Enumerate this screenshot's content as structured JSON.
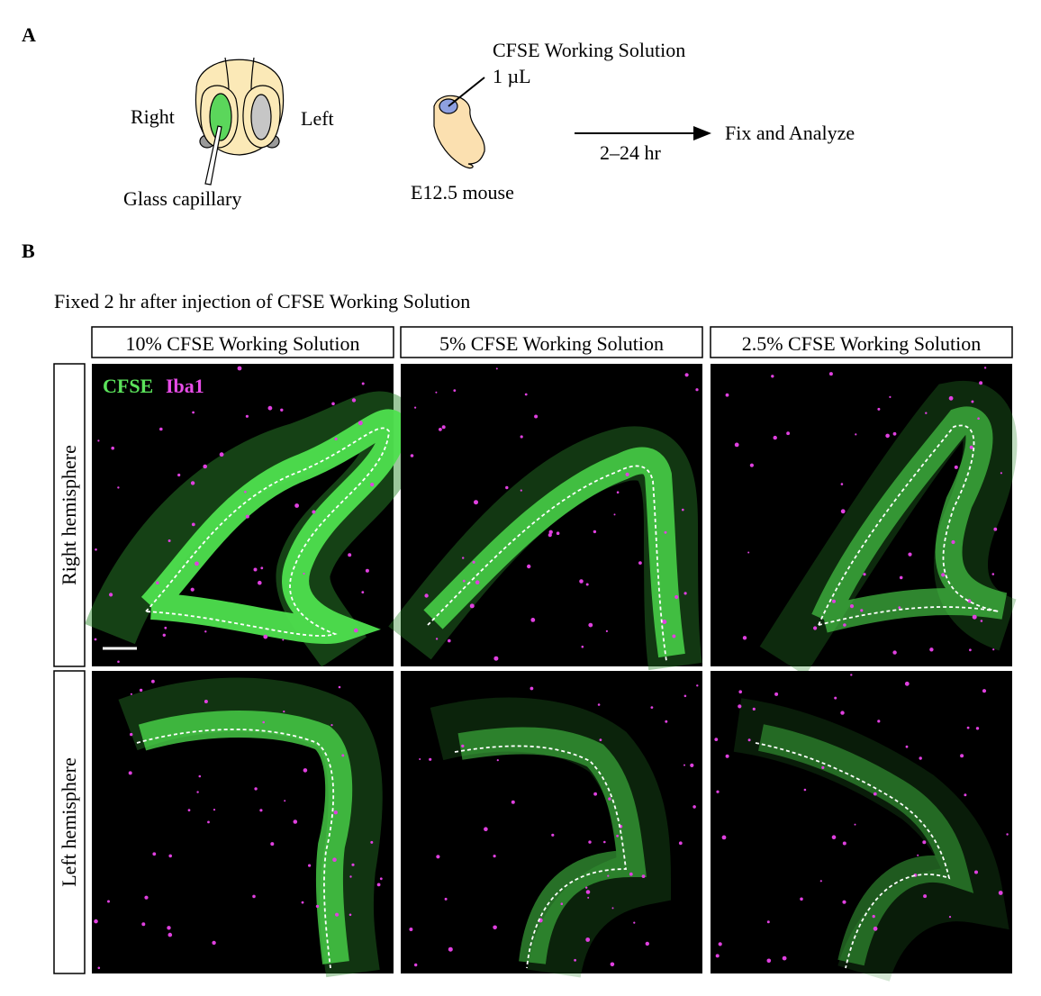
{
  "panel_a": {
    "label": "A",
    "right": "Right",
    "left": "Left",
    "capillary": "Glass capillary",
    "solution": "CFSE Working Solution",
    "volume": "1 µL",
    "embryo": "E12.5 mouse",
    "duration": "2–24 hr",
    "result": "Fix and Analyze"
  },
  "panel_b": {
    "label": "B",
    "caption": "Fixed 2 hr after injection of CFSE Working Solution",
    "columns": [
      "10% CFSE Working Solution",
      "5% CFSE Working Solution",
      "2.5% CFSE Working Solution"
    ],
    "rows": [
      "Right hemisphere",
      "Left hemisphere"
    ],
    "legend": {
      "cfse": "CFSE",
      "iba1": "Iba1"
    }
  }
}
